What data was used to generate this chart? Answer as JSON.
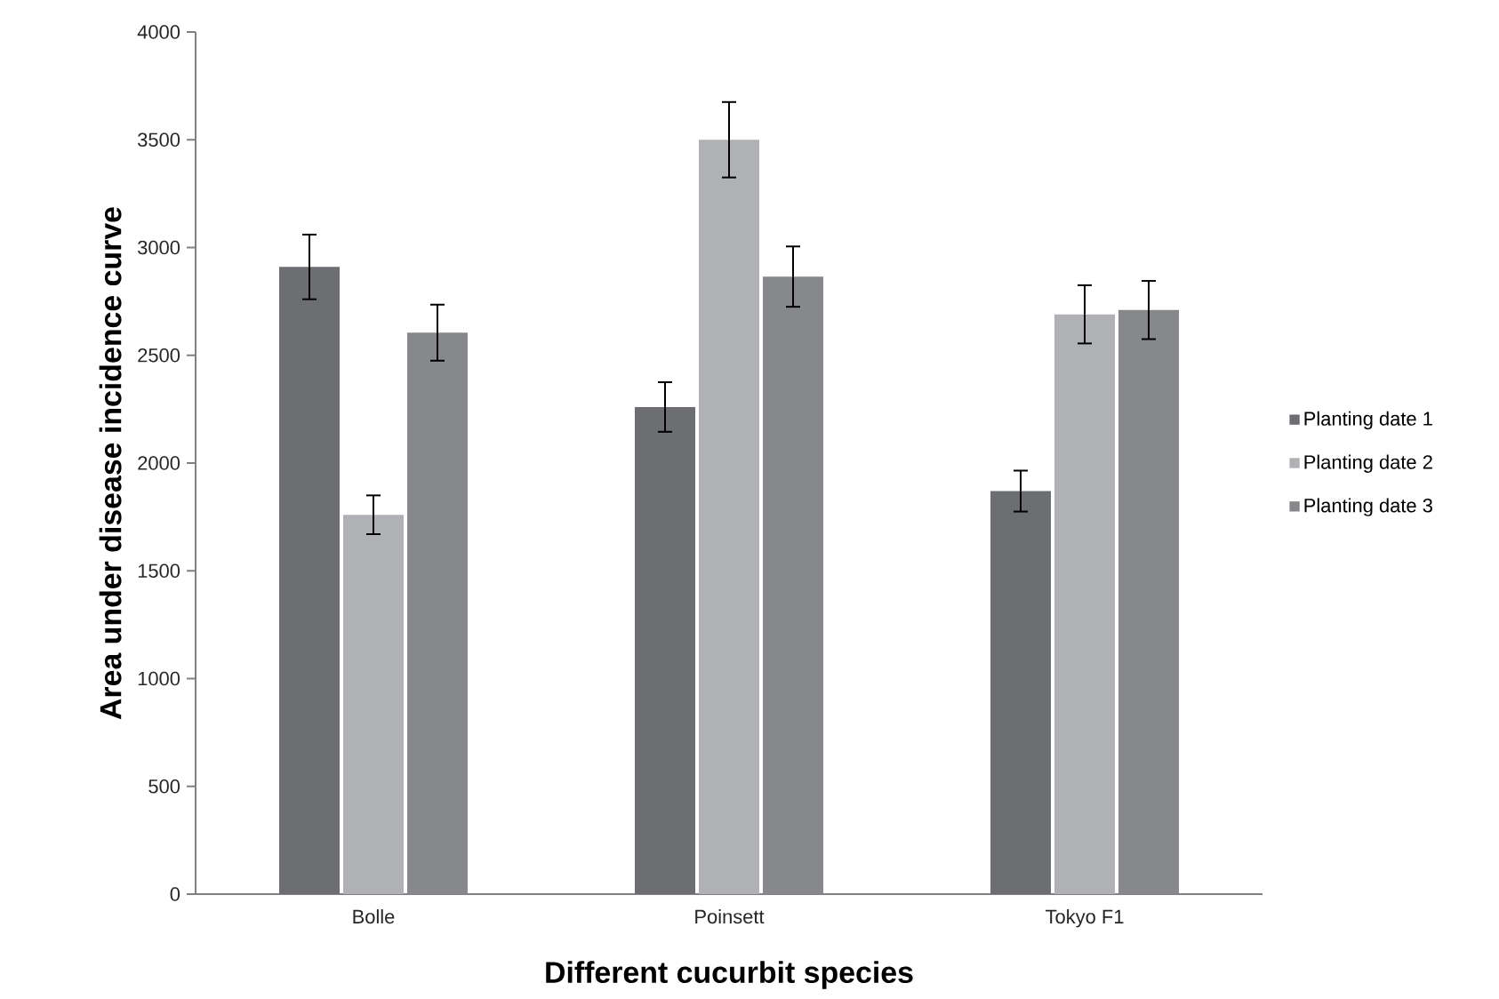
{
  "chart_data": {
    "type": "bar",
    "xlabel": "Different cucurbit species",
    "ylabel": "Area under disease incidence curve",
    "categories": [
      "Bolle",
      "Poinsett",
      "Tokyo F1"
    ],
    "series": [
      {
        "name": "Planting date 1",
        "color": "#6d6e72",
        "values": [
          2910,
          2260,
          1870
        ],
        "errors": [
          150,
          115,
          95
        ]
      },
      {
        "name": "Planting date 2",
        "color": "#b0b1b5",
        "values": [
          1760,
          3500,
          2690
        ],
        "errors": [
          90,
          175,
          135
        ]
      },
      {
        "name": "Planting date 3",
        "color": "#87888c",
        "values": [
          2605,
          2865,
          2710
        ],
        "errors": [
          130,
          140,
          135
        ]
      }
    ],
    "ylim": [
      0,
      4000
    ],
    "yticks": [
      0,
      500,
      1000,
      1500,
      2000,
      2500,
      3000,
      3500,
      4000
    ],
    "grid": false,
    "legend": "right"
  }
}
